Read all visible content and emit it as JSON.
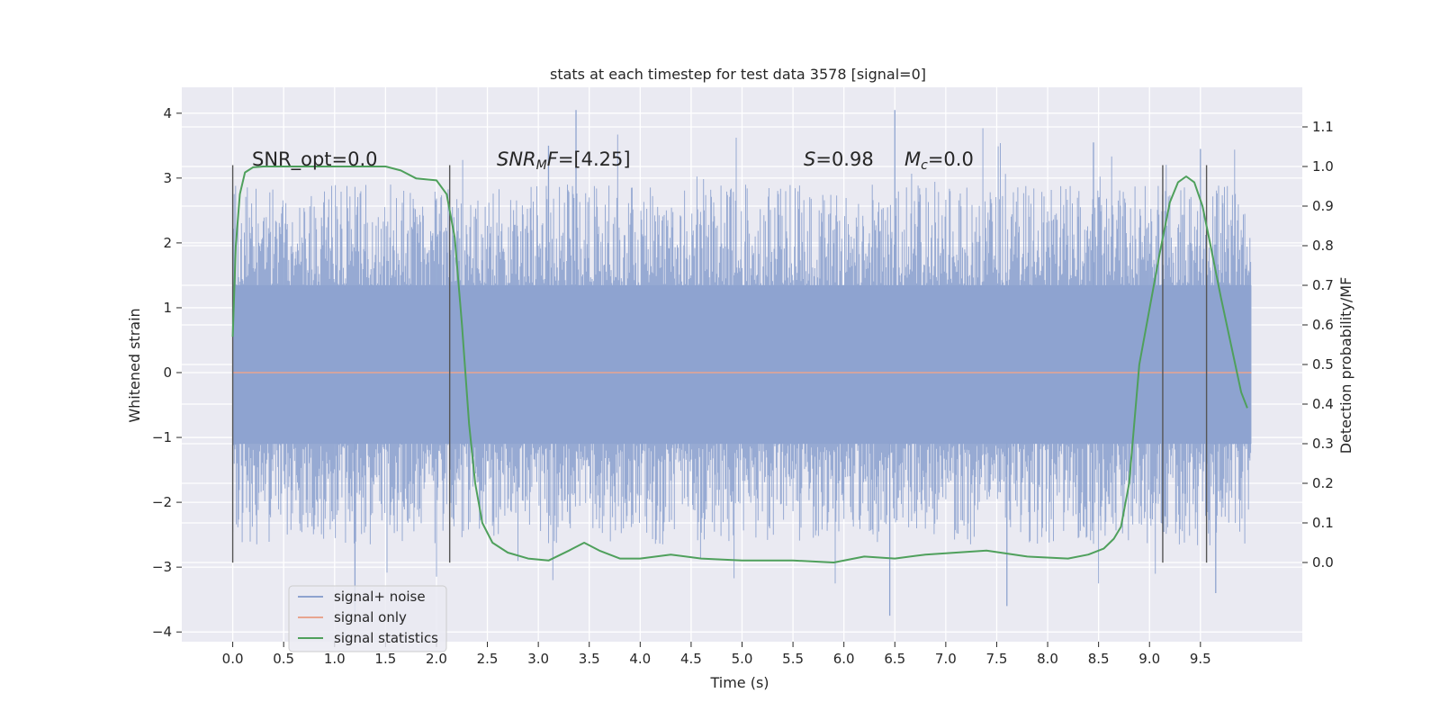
{
  "chart_data": {
    "type": "line",
    "title": "stats at each timestep for test data 3578 [signal=0]",
    "xlabel": "Time (s)",
    "ylabel": "Whitened strain",
    "y2label": "Detection probability/MF",
    "xlim": [
      -0.5,
      10.5
    ],
    "ylim": [
      -4.15,
      4.4
    ],
    "y2lim": [
      -0.2,
      1.2
    ],
    "x_ticks": [
      "0.0",
      "0.5",
      "1.0",
      "1.5",
      "2.0",
      "2.5",
      "3.0",
      "3.5",
      "4.0",
      "4.5",
      "5.0",
      "5.5",
      "6.0",
      "6.5",
      "7.0",
      "7.5",
      "8.0",
      "8.5",
      "9.0",
      "9.5"
    ],
    "y_ticks": [
      "4",
      "3",
      "2",
      "1",
      "0",
      "−1",
      "−2",
      "−3",
      "−4"
    ],
    "y2_ticks": [
      "1.1",
      "1.0",
      "0.9",
      "0.8",
      "0.7",
      "0.6",
      "0.5",
      "0.4",
      "0.3",
      "0.2",
      "0.1",
      "0.0"
    ],
    "grid": true,
    "legend_position": "lower-left",
    "annotations": {
      "snr_opt": "SNR_opt=0.0",
      "snr_mf_italic": "SNR",
      "snr_mf_sub": "M",
      "snr_mf_italic2": "F",
      "snr_mf_rest": "=[4.25]",
      "s_italic": "S",
      "s_rest": "=0.98",
      "mc_italic": "M",
      "mc_sub": "c",
      "mc_rest": "=0.0"
    },
    "vertical_markers_x": [
      0.0,
      2.13,
      9.13,
      9.56
    ],
    "series": [
      {
        "name": "signal+ noise",
        "color": "#8ea3cf",
        "noise_envelope": {
          "x_start": 0.0,
          "x_end": 10.0,
          "dense_upper": 1.35,
          "dense_lower": -1.1,
          "spike_max": 4.05,
          "spike_min": -3.75
        }
      },
      {
        "name": "signal only",
        "color": "#e8a58f",
        "x": [
          0.0,
          10.0
        ],
        "y": [
          0.0,
          0.0
        ]
      },
      {
        "name": "signal statistics",
        "color": "#4fa05c",
        "axis": "right",
        "x": [
          0.0,
          0.03,
          0.07,
          0.12,
          0.2,
          0.3,
          0.5,
          1.0,
          1.5,
          1.65,
          1.8,
          2.0,
          2.1,
          2.18,
          2.25,
          2.32,
          2.38,
          2.45,
          2.55,
          2.7,
          2.9,
          3.1,
          3.3,
          3.45,
          3.6,
          3.8,
          4.0,
          4.3,
          4.6,
          5.0,
          5.5,
          5.9,
          6.2,
          6.5,
          6.8,
          7.1,
          7.4,
          7.8,
          8.2,
          8.4,
          8.55,
          8.65,
          8.72,
          8.8,
          8.9,
          9.0,
          9.1,
          9.2,
          9.28,
          9.36,
          9.44,
          9.52,
          9.6,
          9.7,
          9.8,
          9.9,
          9.96
        ],
        "y": [
          0.57,
          0.8,
          0.93,
          0.985,
          0.998,
          1.0,
          1.0,
          1.0,
          1.0,
          0.99,
          0.97,
          0.965,
          0.93,
          0.82,
          0.6,
          0.35,
          0.2,
          0.1,
          0.05,
          0.025,
          0.01,
          0.005,
          0.03,
          0.05,
          0.03,
          0.01,
          0.01,
          0.02,
          0.01,
          0.005,
          0.005,
          0.0,
          0.015,
          0.01,
          0.02,
          0.025,
          0.03,
          0.015,
          0.01,
          0.02,
          0.035,
          0.06,
          0.09,
          0.2,
          0.5,
          0.64,
          0.78,
          0.91,
          0.96,
          0.975,
          0.96,
          0.9,
          0.8,
          0.67,
          0.55,
          0.43,
          0.39
        ]
      }
    ]
  }
}
